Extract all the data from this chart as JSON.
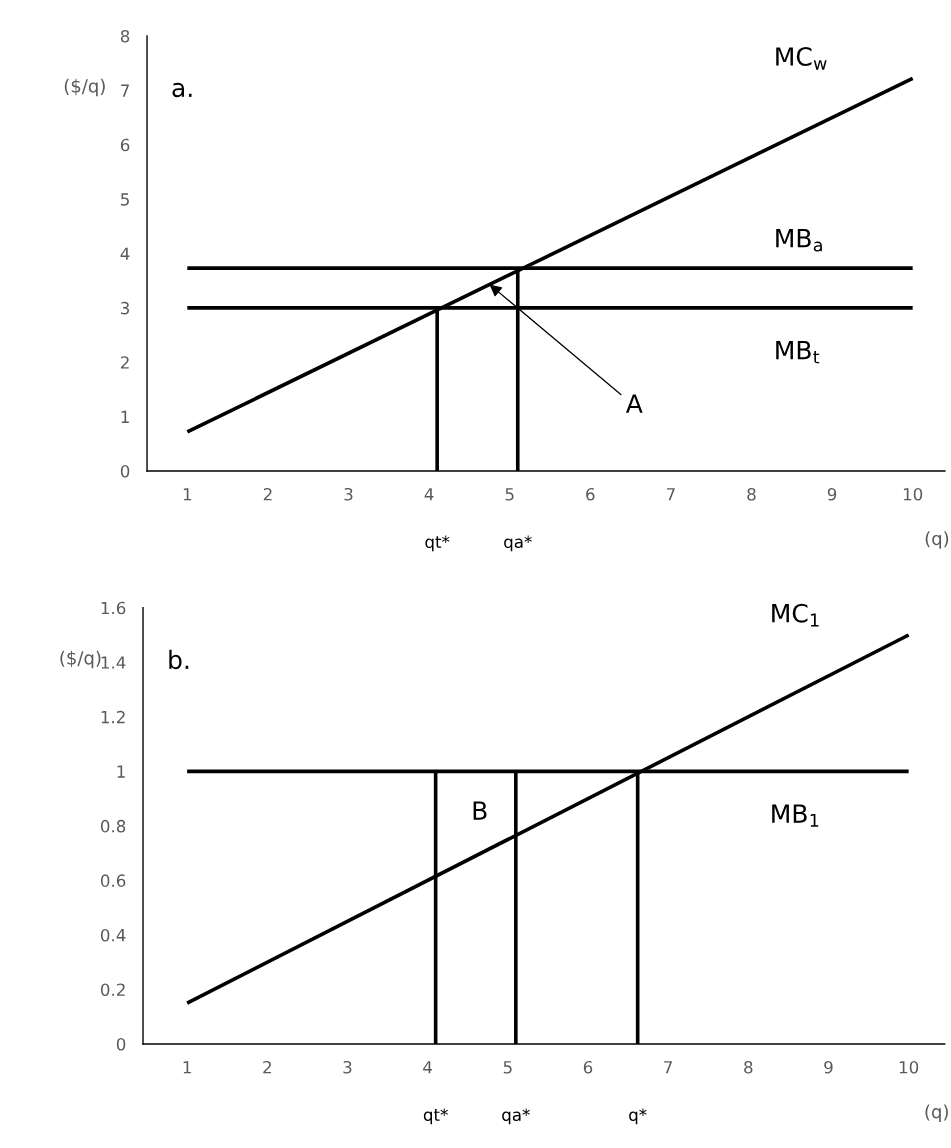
{
  "chart_data": [
    {
      "type": "line",
      "title": "a.",
      "xlabel": "(q)",
      "ylabel": "($/q)",
      "xlim": [
        0.5,
        10.4
      ],
      "ylim": [
        0,
        8
      ],
      "xticks": [
        1,
        2,
        3,
        4,
        5,
        6,
        7,
        8,
        9,
        10
      ],
      "yticks": [
        0,
        1,
        2,
        3,
        4,
        5,
        6,
        7,
        8
      ],
      "grid": false,
      "legend": false,
      "marker": "none",
      "line_style": "solid",
      "series": [
        {
          "name": "MC$_{w}$",
          "color": "#000000",
          "x": [
            1,
            10
          ],
          "values": [
            0.72,
            7.22
          ]
        },
        {
          "name": "MB$_{a}$",
          "color": "#000000",
          "x": [
            1,
            10
          ],
          "values": [
            3.73,
            3.73
          ]
        },
        {
          "name": "MB$_{t}$",
          "color": "#000000",
          "x": [
            1,
            10
          ],
          "values": [
            3,
            3
          ]
        },
        {
          "color": "#000000",
          "x": [
            4.1,
            4.1
          ],
          "values": [
            0,
            3
          ]
        },
        {
          "color": "#000000",
          "x": [
            5.1,
            5.1
          ],
          "values": [
            0,
            3.73
          ]
        }
      ],
      "annotations": [
        {
          "text": "A",
          "x": 4.75,
          "y": 3.43
        },
        "qt*",
        "qa*"
      ]
    },
    {
      "type": "line",
      "title": "b.",
      "xlabel": "(q)",
      "ylabel": "($/q)",
      "xlim": [
        0.45,
        10.45
      ],
      "ylim": [
        0,
        1.6
      ],
      "xticks": [
        1,
        2,
        3,
        4,
        5,
        6,
        7,
        8,
        9,
        10
      ],
      "yticks": [
        0,
        0.2,
        0.4,
        0.6,
        0.8,
        1,
        1.2,
        1.4,
        1.6
      ],
      "grid": false,
      "legend": false,
      "marker": "none",
      "line_style": "solid",
      "series": [
        {
          "name": "MC$_{1}$",
          "color": "#000000",
          "x": [
            1,
            10
          ],
          "values": [
            0.15,
            1.5
          ]
        },
        {
          "name": "MB$_{1}$",
          "color": "#000000",
          "x": [
            1,
            10
          ],
          "values": [
            1,
            1
          ]
        },
        {
          "color": "#000000",
          "x": [
            4.1,
            4.1
          ],
          "values": [
            0,
            1
          ]
        },
        {
          "color": "#000000",
          "x": [
            5.1,
            5.1
          ],
          "values": [
            0,
            1
          ]
        },
        {
          "color": "#000000",
          "x": [
            6.62,
            6.62
          ],
          "values": [
            0,
            1
          ]
        }
      ],
      "annotations": [
        "B",
        "qt*",
        "qa*",
        "q*"
      ]
    }
  ]
}
